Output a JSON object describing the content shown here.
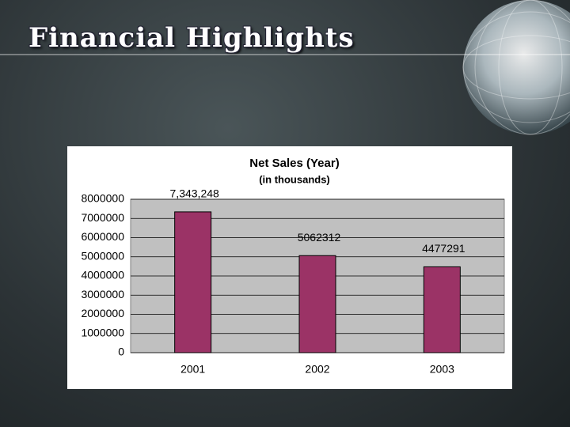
{
  "slide": {
    "title": "Financial Highlights"
  },
  "chart_data": {
    "type": "bar",
    "title": "Net Sales (Year)",
    "subtitle": "(in thousands)",
    "categories": [
      "2001",
      "2002",
      "2003"
    ],
    "values": [
      7343248,
      5062312,
      4477291
    ],
    "value_labels": [
      "7,343,248",
      "5062312",
      "4477291"
    ],
    "color": "#9b3366",
    "ylim": [
      0,
      8000000
    ],
    "yticks": [
      0,
      1000000,
      2000000,
      3000000,
      4000000,
      5000000,
      6000000,
      7000000,
      8000000
    ],
    "grid": true
  }
}
